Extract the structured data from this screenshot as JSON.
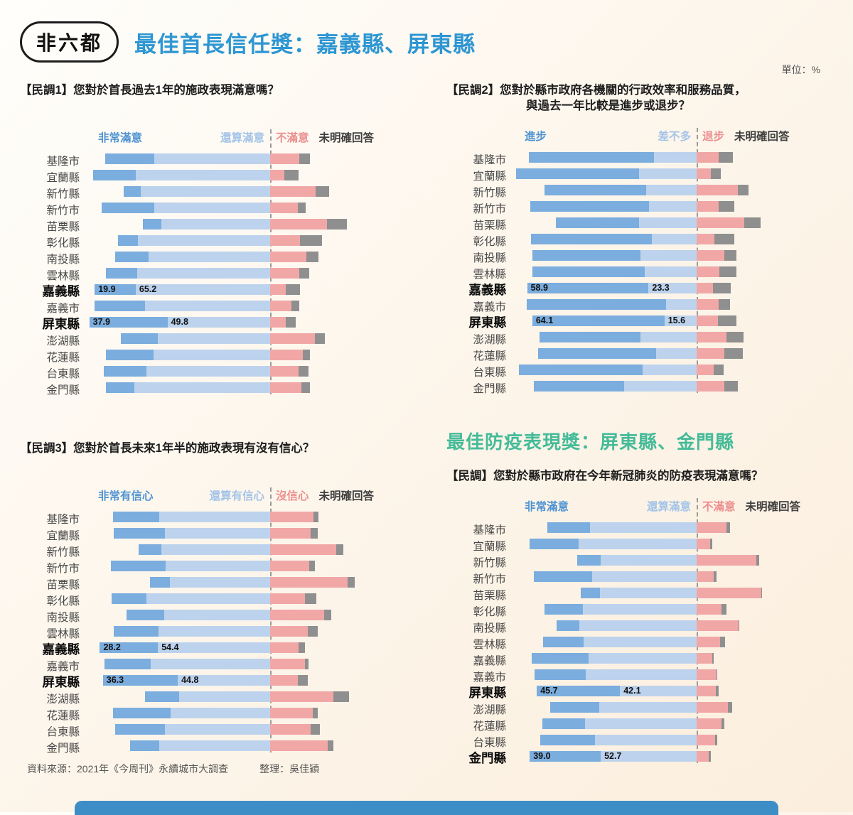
{
  "page": {
    "badge": "非六都",
    "title": "最佳首長信任獎：嘉義縣、屏東縣",
    "unit_note": "單位：%",
    "footer": {
      "source": "資料來源：2021年《今周刊》永續城市大調查",
      "editor": "整理：吳佳穎"
    },
    "colors": {
      "background": "#fdf5ec",
      "title_blue": "#2d96d3",
      "title_green": "#45bb99",
      "bar_dark_blue": "#7badde",
      "bar_light_blue": "#bdd3ed",
      "bar_pink": "#f2a7a7",
      "bar_gray": "#8f8f8f",
      "bottom_strip": "#3d8ec6"
    }
  },
  "chart_data": [
    {
      "type": "bar",
      "stacked": true,
      "layout": {
        "diverging_at_dissatisfied": true,
        "legend_position": "top",
        "grid": false,
        "unit": "%"
      },
      "title": "【民調1】您對於首長過去1年的施政表現滿意嗎？",
      "title_line2": "",
      "heading": "",
      "legend": [
        "非常滿意",
        "還算滿意",
        "不滿意",
        "未明確回答"
      ],
      "categories": [
        "基隆市",
        "宜蘭縣",
        "新竹縣",
        "新竹市",
        "苗栗縣",
        "彰化縣",
        "南投縣",
        "雲林縣",
        "嘉義縣",
        "嘉義市",
        "屏東縣",
        "澎湖縣",
        "花蓮縣",
        "台東縣",
        "金門縣"
      ],
      "highlight": [
        "嘉義縣",
        "屏東縣"
      ],
      "series": [
        {
          "name": "非常滿意",
          "values": [
            23.6,
            20.5,
            8.4,
            25.4,
            8.9,
            9.8,
            16.4,
            15.1,
            19.9,
            24.4,
            37.9,
            17.9,
            23.2,
            20.6,
            13.7
          ]
        },
        {
          "name": "還算滿意",
          "values": [
            56.3,
            65.2,
            62.6,
            56.3,
            52.9,
            64.0,
            58.9,
            64.6,
            65.2,
            60.7,
            49.8,
            54.4,
            56.5,
            60.1,
            66.0
          ]
        },
        {
          "name": "不滿意",
          "values": [
            14.3,
            6.9,
            22.1,
            13.4,
            27.7,
            14.5,
            17.6,
            14.3,
            7.7,
            10.3,
            7.7,
            21.7,
            15.7,
            13.7,
            15.1
          ]
        },
        {
          "name": "未明確回答",
          "values": [
            5.0,
            6.9,
            6.5,
            4.0,
            9.7,
            10.8,
            5.8,
            4.8,
            6.9,
            3.7,
            4.6,
            5.0,
            3.7,
            4.8,
            4.2
          ]
        }
      ],
      "value_labels": {
        "嘉義縣": [
          "19.9",
          "65.2"
        ],
        "屏東縣": [
          "37.9",
          "49.8"
        ]
      }
    },
    {
      "type": "bar",
      "stacked": true,
      "layout": {
        "diverging_at_dissatisfied": true,
        "legend_position": "top",
        "grid": false,
        "unit": "%"
      },
      "title": "【民調2】您對於縣市政府各機關的行政效率和服務品質，",
      "title_line2": "與過去一年比較是進步或退步？",
      "heading": "",
      "legend": [
        "進步",
        "差不多",
        "退步",
        "未明確回答"
      ],
      "categories": [
        "基隆市",
        "宜蘭縣",
        "新竹縣",
        "新竹市",
        "苗栗縣",
        "彰化縣",
        "南投縣",
        "雲林縣",
        "嘉義縣",
        "嘉義市",
        "屏東縣",
        "澎湖縣",
        "花蓮縣",
        "台東縣",
        "金門縣"
      ],
      "highlight": [
        "嘉義縣",
        "屏東縣"
      ],
      "series": [
        {
          "name": "進步",
          "values": [
            60.7,
            59.7,
            49.3,
            57.6,
            40.3,
            58.8,
            52.5,
            54.6,
            58.9,
            67.7,
            64.1,
            49.1,
            57.1,
            59.9,
            43.7
          ]
        },
        {
          "name": "差不多",
          "values": [
            20.8,
            27.9,
            24.6,
            23.1,
            27.9,
            21.6,
            27.3,
            25.0,
            23.3,
            14.7,
            15.6,
            27.1,
            19.7,
            26.2,
            35.1
          ]
        },
        {
          "name": "退步",
          "values": [
            10.6,
            7.0,
            20.1,
            10.6,
            23.2,
            8.7,
            13.5,
            11.2,
            8.0,
            10.6,
            10.4,
            14.4,
            13.5,
            8.3,
            13.5
          ]
        },
        {
          "name": "未明確回答",
          "values": [
            7.1,
            4.6,
            5.0,
            7.7,
            8.0,
            9.7,
            5.7,
            8.2,
            8.7,
            5.7,
            9.0,
            8.2,
            8.8,
            4.8,
            6.6
          ]
        }
      ],
      "value_labels": {
        "嘉義縣": [
          "58.9",
          "23.3"
        ],
        "屏東縣": [
          "64.1",
          "15.6"
        ]
      }
    },
    {
      "type": "bar",
      "stacked": true,
      "layout": {
        "diverging_at_dissatisfied": true,
        "legend_position": "top",
        "grid": false,
        "unit": "%"
      },
      "title": "【民調3】您對於首長未來1年半的施政表現有沒有信心？",
      "title_line2": "",
      "heading": "",
      "legend": [
        "非常有信心",
        "還算有信心",
        "沒信心",
        "未明確回答"
      ],
      "categories": [
        "基隆市",
        "宜蘭縣",
        "新竹縣",
        "新竹市",
        "苗栗縣",
        "彰化縣",
        "南投縣",
        "雲林縣",
        "嘉義縣",
        "嘉義市",
        "屏東縣",
        "澎湖縣",
        "花蓮縣",
        "台東縣",
        "金門縣"
      ],
      "highlight": [
        "嘉義縣",
        "屏東縣"
      ],
      "series": [
        {
          "name": "非常有信心",
          "values": [
            22.3,
            24.9,
            10.9,
            26.8,
            9.8,
            17.1,
            18.3,
            21.9,
            28.2,
            22.5,
            36.3,
            16.5,
            28.0,
            24.0,
            14.1
          ]
        },
        {
          "name": "還算有信心",
          "values": [
            53.8,
            51.1,
            52.9,
            50.6,
            48.5,
            59.9,
            51.4,
            54.0,
            54.4,
            57.8,
            44.8,
            44.1,
            48.3,
            51.1,
            53.8
          ]
        },
        {
          "name": "沒信心",
          "values": [
            21.1,
            19.6,
            32.0,
            19.1,
            37.7,
            16.8,
            26.1,
            18.3,
            13.9,
            16.8,
            13.4,
            30.8,
            20.8,
            19.6,
            28.0
          ]
        },
        {
          "name": "未明確回答",
          "values": [
            2.2,
            3.4,
            3.4,
            2.5,
            3.4,
            5.5,
            3.6,
            4.8,
            3.1,
            1.7,
            4.9,
            7.6,
            2.3,
            4.6,
            2.8
          ]
        }
      ],
      "value_labels": {
        "嘉義縣": [
          "28.2",
          "54.4"
        ],
        "屏東縣": [
          "36.3",
          "44.8"
        ]
      }
    },
    {
      "type": "bar",
      "stacked": true,
      "layout": {
        "diverging_at_dissatisfied": true,
        "legend_position": "top",
        "grid": false,
        "unit": "%"
      },
      "title": "【民調】您對於縣市政府在今年新冠肺炎的防疫表現滿意嗎？",
      "title_line2": "",
      "heading": "最佳防疫表現獎：屏東縣、金門縣",
      "legend": [
        "非常滿意",
        "還算滿意",
        "不滿意",
        "未明確回答"
      ],
      "categories": [
        "基隆市",
        "宜蘭縣",
        "新竹縣",
        "新竹市",
        "苗栗縣",
        "彰化縣",
        "南投縣",
        "雲林縣",
        "嘉義縣",
        "嘉義市",
        "屏東縣",
        "澎湖縣",
        "花蓮縣",
        "台東縣",
        "金門縣"
      ],
      "highlight": [
        "屏東縣",
        "金門縣"
      ],
      "series": [
        {
          "name": "非常滿意",
          "values": [
            23.4,
            26.7,
            13.0,
            32.1,
            10.5,
            21.0,
            12.5,
            22.4,
            31.0,
            28.2,
            45.7,
            26.7,
            23.4,
            30.0,
            39.0
          ]
        },
        {
          "name": "還算滿意",
          "values": [
            58.6,
            65.0,
            52.6,
            57.3,
            53.3,
            62.5,
            64.3,
            62.0,
            59.5,
            60.8,
            42.1,
            53.7,
            61.2,
            56.0,
            52.7
          ]
        },
        {
          "name": "不滿意",
          "values": [
            16.6,
            7.3,
            32.7,
            9.5,
            35.7,
            13.8,
            22.9,
            13.0,
            8.4,
            10.8,
            10.5,
            17.3,
            13.8,
            10.0,
            6.5
          ]
        },
        {
          "name": "未明確回答",
          "values": [
            1.7,
            1.2,
            1.6,
            1.3,
            0.4,
            2.6,
            0.3,
            2.6,
            1.1,
            0.4,
            1.6,
            2.2,
            1.6,
            1.4,
            1.4
          ]
        }
      ],
      "value_labels": {
        "屏東縣": [
          "45.7",
          "42.1"
        ],
        "金門縣": [
          "39.0",
          "52.7"
        ]
      }
    }
  ]
}
